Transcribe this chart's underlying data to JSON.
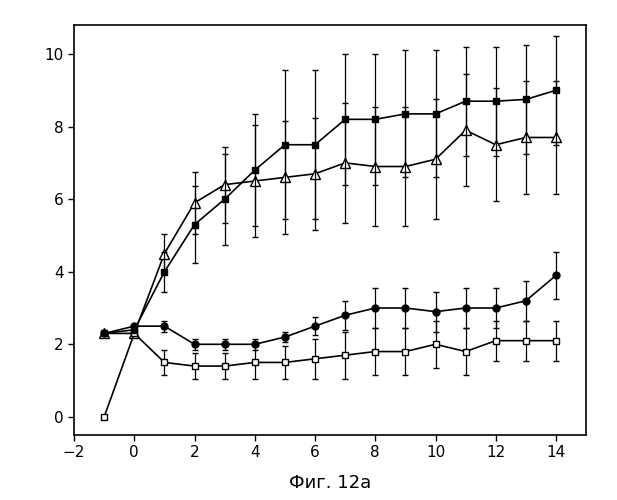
{
  "xlabel": "Фиг. 12a",
  "background_color": "#ffffff",
  "xlim": [
    -2,
    15
  ],
  "ylim": [
    -0.5,
    10.8
  ],
  "xticks": [
    -2,
    0,
    2,
    4,
    6,
    8,
    10,
    12,
    14
  ],
  "yticks": [
    0,
    2,
    4,
    6,
    8,
    10
  ],
  "filled_square": {
    "x": [
      -1,
      0,
      1,
      2,
      3,
      4,
      5,
      6,
      7,
      8,
      9,
      10,
      11,
      12,
      13,
      14
    ],
    "y": [
      2.3,
      2.4,
      4.0,
      5.3,
      6.0,
      6.8,
      7.5,
      7.5,
      8.2,
      8.2,
      8.35,
      8.35,
      8.7,
      8.7,
      8.75,
      9.0
    ],
    "yerr": [
      0.05,
      0.05,
      0.55,
      1.05,
      1.25,
      1.55,
      2.05,
      2.05,
      1.8,
      1.8,
      1.75,
      1.75,
      1.5,
      1.5,
      1.5,
      1.5
    ]
  },
  "open_triangle": {
    "x": [
      -1,
      0,
      1,
      2,
      3,
      4,
      5,
      6,
      7,
      8,
      9,
      10,
      11,
      12,
      13,
      14
    ],
    "y": [
      2.3,
      2.3,
      4.5,
      5.9,
      6.4,
      6.5,
      6.6,
      6.7,
      7.0,
      6.9,
      6.9,
      7.1,
      7.9,
      7.5,
      7.7,
      7.7
    ],
    "yerr": [
      0.05,
      0.05,
      0.55,
      0.85,
      1.05,
      1.55,
      1.55,
      1.55,
      1.65,
      1.65,
      1.65,
      1.65,
      1.55,
      1.55,
      1.55,
      1.55
    ]
  },
  "filled_circle": {
    "x": [
      -1,
      0,
      1,
      2,
      3,
      4,
      5,
      6,
      7,
      8,
      9,
      10,
      11,
      12,
      13,
      14
    ],
    "y": [
      2.3,
      2.5,
      2.5,
      2.0,
      2.0,
      2.0,
      2.2,
      2.5,
      2.8,
      3.0,
      3.0,
      2.9,
      3.0,
      3.0,
      3.2,
      3.9
    ],
    "yerr": [
      0.05,
      0.05,
      0.15,
      0.15,
      0.15,
      0.15,
      0.15,
      0.25,
      0.4,
      0.55,
      0.55,
      0.55,
      0.55,
      0.55,
      0.55,
      0.65
    ]
  },
  "open_square": {
    "x": [
      -1,
      0,
      1,
      2,
      3,
      4,
      5,
      6,
      7,
      8,
      9,
      10,
      11,
      12,
      13,
      14
    ],
    "y": [
      0.0,
      2.3,
      1.5,
      1.4,
      1.4,
      1.5,
      1.5,
      1.6,
      1.7,
      1.8,
      1.8,
      2.0,
      1.8,
      2.1,
      2.1,
      2.1
    ],
    "yerr": [
      0.05,
      0.05,
      0.35,
      0.35,
      0.35,
      0.45,
      0.45,
      0.55,
      0.65,
      0.65,
      0.65,
      0.65,
      0.65,
      0.55,
      0.55,
      0.55
    ]
  }
}
